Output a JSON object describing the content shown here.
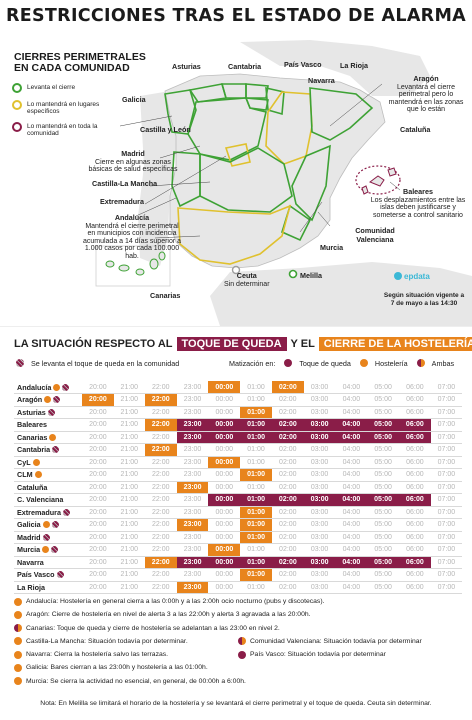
{
  "title": "RESTRICCIONES TRAS EL ESTADO DE ALARMA",
  "legend": {
    "heading_1": "CIERRES PERIMETRALES",
    "heading_2": "EN CADA COMUNIDAD",
    "items": [
      {
        "label": "Levanta el cierre",
        "color": "#3ea235"
      },
      {
        "label": "Lo mantendrá en lugares específicos",
        "color": "#e0c12e"
      },
      {
        "label": "Lo mantendrá en toda la comunidad",
        "color": "#8a1d48"
      }
    ]
  },
  "map_labels": {
    "asturias": "Asturias",
    "cantabria": "Cantabria",
    "pais_vasco": "País Vasco",
    "navarra": "Navarra",
    "la_rioja": "La Rioja",
    "galicia": "Galicia",
    "aragon": "Aragón",
    "aragon_note": "Levantará el cierre perimetral pero lo mantendrá en las zonas que lo están",
    "castilla_leon": "Castilla y León",
    "cataluna": "Cataluña",
    "madrid": "Madrid",
    "madrid_note": "Cierre en algunas zonas básicas de salud específicas",
    "castilla_la_mancha": "Castilla-La Mancha",
    "extremadura": "Extremadura",
    "andalucia": "Andalucía",
    "andalucia_note": "Mantendrá el cierre perimetral en municipios con incidencia acumulada a 14 días superior a 1.000 casos por cada 100.000 hab.",
    "baleares": "Baleares",
    "baleares_note": "Los desplazamientos entre las islas deben justificarse y someterse a control sanitario",
    "murcia": "Murcia",
    "comunidad_valenciana": "Comunidad Valenciana",
    "ceuta": "Ceuta",
    "ceuta_note": "Sin determinar",
    "melilla": "Melilla",
    "canarias": "Canarias",
    "brand": "epdata",
    "update": "Según situación vigente a 7 de mayo a las 14:30"
  },
  "situation": {
    "lead": "LA SITUACIÓN RESPECTO AL",
    "toque": "TOQUE DE QUEDA",
    "mid": "Y EL",
    "hosteleria": "CIERRE DE LA HOSTELERÍA",
    "levanta_note": "Se levanta el toque de queda en la comunidad",
    "matiz_label": "Matización en:",
    "matiz_toque": "Toque de queda",
    "matiz_hosteleria": "Hostelería",
    "matiz_ambas": "Ambas",
    "colors": {
      "toque": "#8a1d48",
      "hosteleria": "#e8841c",
      "levanta": "#8a1d48"
    }
  },
  "hours": [
    "20:00",
    "21:00",
    "22:00",
    "23:00",
    "00:00",
    "01:00",
    "02:00",
    "03:00",
    "04:00",
    "05:00",
    "06:00",
    "07:00"
  ],
  "rows": [
    {
      "name": "Andalucía",
      "marks": [
        "orange",
        "stripe"
      ],
      "cells": [
        "",
        "",
        "",
        "",
        "o",
        "",
        "o",
        "",
        "",
        "",
        "",
        ""
      ]
    },
    {
      "name": "Aragón",
      "marks": [
        "orange",
        "stripe"
      ],
      "cells": [
        "o",
        "",
        "o",
        "",
        "",
        "",
        "",
        "",
        "",
        "",
        "",
        ""
      ]
    },
    {
      "name": "Asturias",
      "marks": [
        "stripe"
      ],
      "cells": [
        "",
        "",
        "",
        "",
        "",
        "o",
        "",
        "",
        "",
        "",
        "",
        ""
      ]
    },
    {
      "name": "Baleares",
      "marks": [],
      "cells": [
        "",
        "",
        "o",
        "p",
        "p",
        "p",
        "p",
        "p",
        "p",
        "p",
        "p",
        ""
      ]
    },
    {
      "name": "Canarias",
      "marks": [
        "orange"
      ],
      "cells": [
        "",
        "",
        "",
        "p",
        "p",
        "p",
        "p",
        "p",
        "p",
        "p",
        "p",
        ""
      ]
    },
    {
      "name": "Cantabria",
      "marks": [
        "stripe"
      ],
      "cells": [
        "",
        "",
        "o",
        "",
        "",
        "",
        "",
        "",
        "",
        "",
        "",
        ""
      ]
    },
    {
      "name": "CyL",
      "marks": [
        "orange"
      ],
      "cells": [
        "",
        "",
        "",
        "",
        "o",
        "",
        "",
        "",
        "",
        "",
        "",
        ""
      ]
    },
    {
      "name": "CLM",
      "marks": [
        "orange"
      ],
      "cells": [
        "",
        "",
        "",
        "",
        "",
        "o",
        "",
        "",
        "",
        "",
        "",
        ""
      ]
    },
    {
      "name": "Cataluña",
      "marks": [],
      "cells": [
        "",
        "",
        "",
        "o",
        "",
        "",
        "",
        "",
        "",
        "",
        "",
        ""
      ]
    },
    {
      "name": "C. Valenciana",
      "marks": [],
      "cells": [
        "",
        "",
        "",
        "",
        "p",
        "p",
        "p",
        "p",
        "p",
        "p",
        "p",
        ""
      ]
    },
    {
      "name": "Extremadura",
      "marks": [
        "stripe"
      ],
      "cells": [
        "",
        "",
        "",
        "",
        "",
        "o",
        "",
        "",
        "",
        "",
        "",
        ""
      ]
    },
    {
      "name": "Galicia",
      "marks": [
        "orange",
        "stripe"
      ],
      "cells": [
        "",
        "",
        "",
        "o",
        "",
        "o",
        "",
        "",
        "",
        "",
        "",
        ""
      ]
    },
    {
      "name": "Madrid",
      "marks": [
        "stripe"
      ],
      "cells": [
        "",
        "",
        "",
        "",
        "",
        "o",
        "",
        "",
        "",
        "",
        "",
        ""
      ]
    },
    {
      "name": "Murcia",
      "marks": [
        "orange",
        "stripe"
      ],
      "cells": [
        "",
        "",
        "",
        "",
        "o",
        "",
        "",
        "",
        "",
        "",
        "",
        ""
      ]
    },
    {
      "name": "Navarra",
      "marks": [],
      "cells": [
        "",
        "",
        "o",
        "p",
        "p",
        "p",
        "p",
        "p",
        "p",
        "p",
        "p",
        ""
      ]
    },
    {
      "name": "País Vasco",
      "marks": [
        "stripe"
      ],
      "cells": [
        "",
        "",
        "",
        "",
        "",
        "o",
        "",
        "",
        "",
        "",
        "",
        ""
      ]
    },
    {
      "name": "La Rioja",
      "marks": [],
      "cells": [
        "",
        "",
        "",
        "o",
        "",
        "",
        "",
        "",
        "",
        "",
        "",
        ""
      ]
    }
  ],
  "notes": {
    "andalucia": "Andalucía: Hostelería en general cierra a las 0:00h y a las 2:00h ocio nocturno (pubs y discotecas).",
    "aragon": "Aragón: Cierre de hostelería en nivel de alerta 3 a las 22:00h y alerta 3 agravada a las 20:00h.",
    "canarias": "Canarias: Toque de queda y cierre de hostelería se adelantan a las 23:00 en nivel 2.",
    "clm": "Castilla-La Mancha: Situación todavía por determinar.",
    "cv": "Comunidad Valenciana: Situación todavía por determinar",
    "navarra": "Navarra: Cierra la hostelería salvo las terrazas.",
    "pv": "País Vasco: Situación todavía por determinar",
    "galicia": "Galicia: Bares cierran a las 23:00h y hostelería a las 01:00h.",
    "murcia": "Murcia: Se cierra la actividad no esencial, en general, de 00:00h a 6:00h.",
    "footer": "Nota: En Melilla se limitará el horario de la hostelería y se levantará el cierre perimetral y el toque de queda. Ceuta sin determinar."
  }
}
